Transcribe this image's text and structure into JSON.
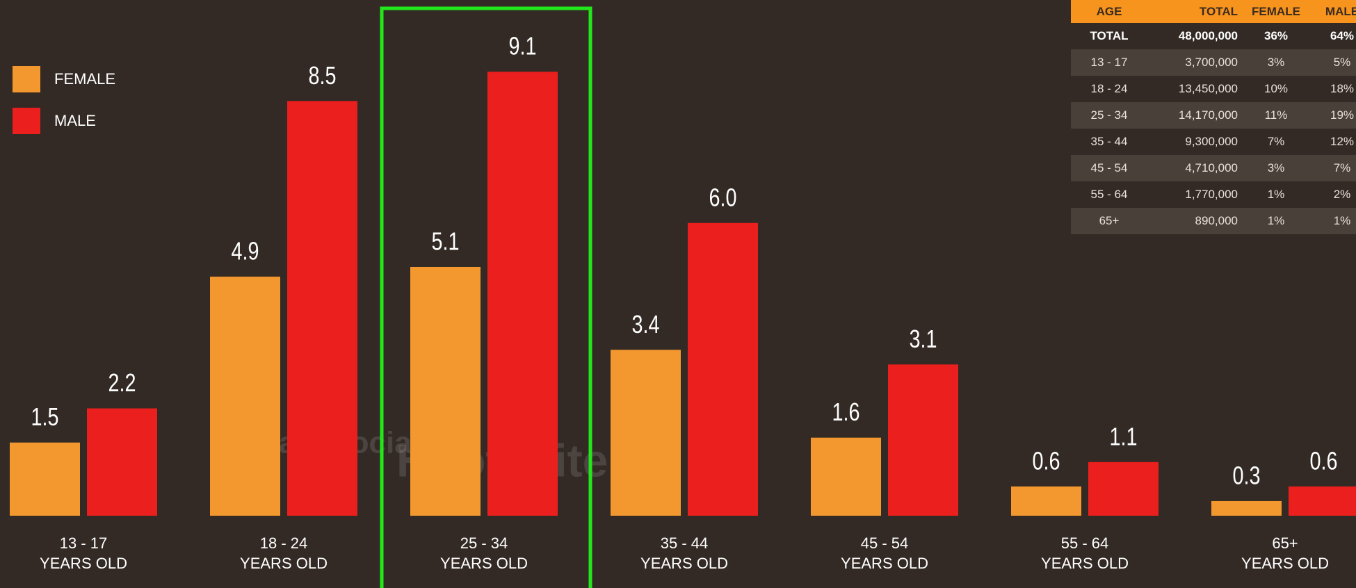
{
  "chart_data": {
    "type": "bar",
    "categories": [
      "13 - 17",
      "18 - 24",
      "25 - 34",
      "35 - 44",
      "45 - 54",
      "55 - 64",
      "65+"
    ],
    "category_suffix": "YEARS OLD",
    "series": [
      {
        "name": "FEMALE",
        "color": "#f2982f",
        "values": [
          1.5,
          4.9,
          5.1,
          3.4,
          1.6,
          0.6,
          0.3
        ]
      },
      {
        "name": "MALE",
        "color": "#ec1f1f",
        "values": [
          2.2,
          8.5,
          9.1,
          6.0,
          3.1,
          1.1,
          0.6
        ],
        "value_labels": [
          "2.2",
          "8.5",
          "9.1",
          "6.0",
          "3.1",
          "1.1",
          "0.6"
        ]
      }
    ],
    "legend": "top-left"
  },
  "table": {
    "header": [
      "AGE",
      "TOTAL",
      "FEMALE",
      "MALE"
    ],
    "rows": [
      [
        "TOTAL",
        "48,000,000",
        "36%",
        "64%"
      ],
      [
        "13 - 17",
        "3,700,000",
        "3%",
        "5%"
      ],
      [
        "18 - 24",
        "13,450,000",
        "10%",
        "18%"
      ],
      [
        "25 - 34",
        "14,170,000",
        "11%",
        "19%"
      ],
      [
        "35 - 44",
        "9,300,000",
        "7%",
        "12%"
      ],
      [
        "45 - 54",
        "4,710,000",
        "3%",
        "7%"
      ],
      [
        "55 - 64",
        "1,770,000",
        "1%",
        "2%"
      ],
      [
        "65+",
        "890,000",
        "1%",
        "1%"
      ]
    ]
  },
  "watermark": {
    "left": "we are social",
    "right": "Hootsuite"
  }
}
